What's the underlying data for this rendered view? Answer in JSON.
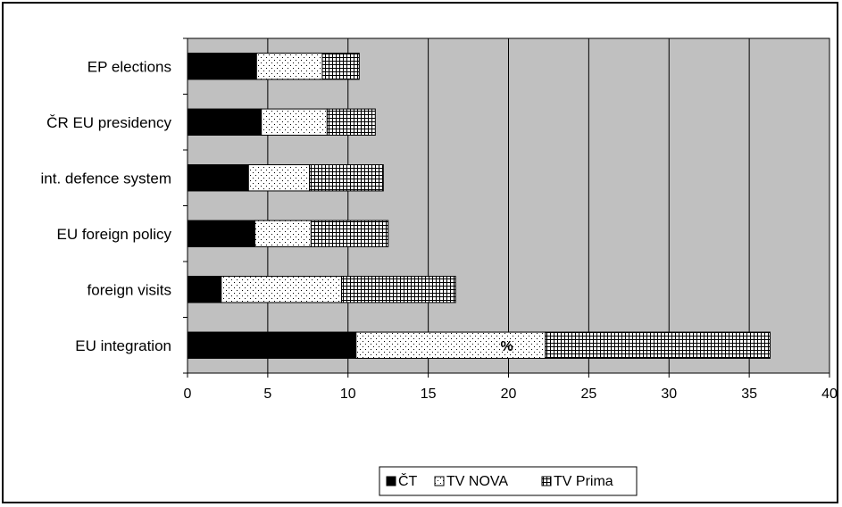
{
  "chart_data": {
    "type": "bar",
    "orientation": "horizontal",
    "stacked": true,
    "categories": [
      "EP elections",
      "ČR EU presidency",
      "int. defence system",
      "EU foreign policy",
      "foreign visits",
      "EU integration"
    ],
    "series": [
      {
        "name": "ČT",
        "values": [
          4.3,
          4.6,
          3.8,
          4.2,
          2.1,
          10.5
        ],
        "color": "#000000",
        "pattern": "solid"
      },
      {
        "name": "TV NOVA",
        "values": [
          4.1,
          4.1,
          3.8,
          3.5,
          7.5,
          11.8
        ],
        "color": "#ffffff",
        "pattern": "dots"
      },
      {
        "name": "TV Prima",
        "values": [
          2.3,
          3.0,
          4.6,
          4.8,
          7.1,
          14.0
        ],
        "color": "#ffffff",
        "pattern": "grid"
      }
    ],
    "xlim": [
      0,
      40
    ],
    "xticks": [
      "0",
      "5",
      "10",
      "15",
      "20",
      "25",
      "30",
      "35",
      "40"
    ],
    "annotation": "%",
    "plot_background": "#c0c0c0",
    "grid": "vertical",
    "legend_position": "bottom"
  }
}
